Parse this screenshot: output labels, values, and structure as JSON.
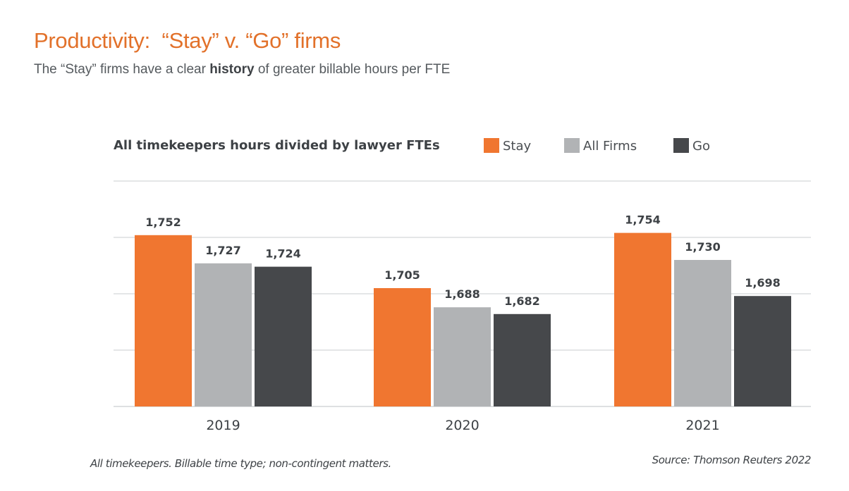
{
  "header": {
    "title": "Productivity:  “Stay” v. “Go” firms",
    "subtitle_pre": "The “Stay” firms have a clear ",
    "subtitle_bold": "history",
    "subtitle_post": " of greater billable hours per FTE"
  },
  "footer": {
    "note": "All timekeepers. Billable time type; non-contingent matters.",
    "source": "Source: Thomson Reuters 2022"
  },
  "chart_data": {
    "type": "bar",
    "title": "All timekeepers hours divided by lawyer FTEs",
    "xlabel": "",
    "ylabel": "",
    "categories": [
      "2019",
      "2020",
      "2021"
    ],
    "series": [
      {
        "name": "Stay",
        "color": "#F07630",
        "values": [
          1752,
          1705,
          1754
        ],
        "labels": [
          "1,752",
          "1,705",
          "1,754"
        ]
      },
      {
        "name": "All Firms",
        "color": "#B1B3B5",
        "values": [
          1727,
          1688,
          1730
        ],
        "labels": [
          "1,727",
          "1,688",
          "1,730"
        ]
      },
      {
        "name": "Go",
        "color": "#46484B",
        "values": [
          1724,
          1682,
          1698
        ],
        "labels": [
          "1,724",
          "1,682",
          "1,698"
        ]
      }
    ],
    "ylim": [
      1600,
      1800
    ],
    "gridlines": [
      1600,
      1650,
      1700,
      1750,
      1800
    ],
    "grid": true,
    "legend_position": "top-right",
    "y_tick_labels_shown": false
  }
}
